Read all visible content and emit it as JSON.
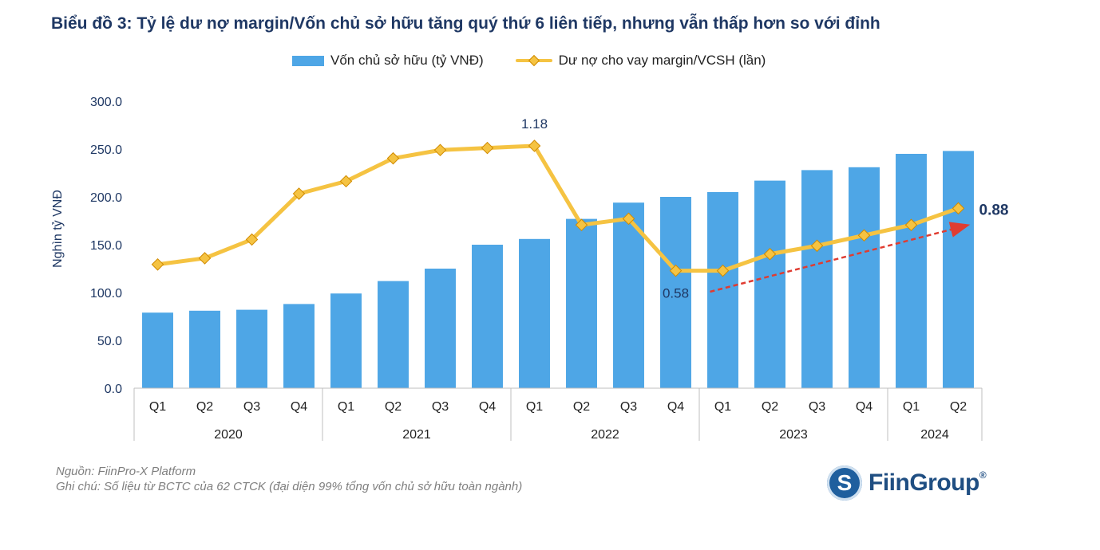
{
  "title": "Biểu đồ 3: Tỷ lệ dư nợ margin/Vốn chủ sở hữu tăng quý thứ 6 liên tiếp, nhưng vẫn thấp hơn so với đỉnh",
  "legend": {
    "bar_label": "Vốn chủ sở hữu (tỷ VNĐ)",
    "line_label": "Dư nợ cho vay margin/VCSH (lần)"
  },
  "notes": {
    "source": "Nguồn: FiinPro-X Platform",
    "note": "Ghi chú: Số liệu từ BCTC của 62 CTCK (đại diện 99% tổng vốn chủ sở hữu toàn ngành)"
  },
  "logo": {
    "text": "FiinGroup",
    "reg": "®",
    "icon": "s-globe-icon",
    "glyph": "S"
  },
  "colors": {
    "bar": "#4ea6e6",
    "line": "#f5c342",
    "marker": "#f5c342",
    "title": "#1f3864",
    "trend": "#e03c31"
  },
  "chart_data": {
    "type": "bar",
    "categories": [
      "Q1",
      "Q2",
      "Q3",
      "Q4",
      "Q1",
      "Q2",
      "Q3",
      "Q4",
      "Q1",
      "Q2",
      "Q3",
      "Q4",
      "Q1",
      "Q2",
      "Q3",
      "Q4",
      "Q1",
      "Q2"
    ],
    "groups": [
      {
        "label": "2020",
        "count": 4
      },
      {
        "label": "2021",
        "count": 4
      },
      {
        "label": "2022",
        "count": 4
      },
      {
        "label": "2023",
        "count": 4
      },
      {
        "label": "2024",
        "count": 2
      }
    ],
    "ylabel": "Nghìn tỷ VNĐ",
    "ylim": [
      0,
      300
    ],
    "yticks": [
      "0.0",
      "50.0",
      "100.0",
      "150.0",
      "200.0",
      "250.0",
      "300.0"
    ],
    "series": [
      {
        "name": "Vốn chủ sở hữu (tỷ VNĐ)",
        "type": "bar",
        "values": [
          79,
          81,
          82,
          88,
          99,
          112,
          125,
          150,
          156,
          177,
          194,
          200,
          205,
          217,
          228,
          231,
          245,
          248
        ]
      },
      {
        "name": "Dư nợ cho vay margin/VCSH (lần)",
        "type": "line",
        "values": [
          0.61,
          0.64,
          0.73,
          0.95,
          1.01,
          1.12,
          1.16,
          1.17,
          1.18,
          0.8,
          0.83,
          0.58,
          0.58,
          0.66,
          0.7,
          0.75,
          0.8,
          0.88
        ]
      }
    ],
    "annotations": [
      {
        "index": 8,
        "text": "1.18"
      },
      {
        "index": 11,
        "text": "0.58"
      },
      {
        "index": 17,
        "text": "0.88"
      }
    ],
    "trend_arrow": {
      "from_index": 12,
      "to_index": 17
    }
  }
}
